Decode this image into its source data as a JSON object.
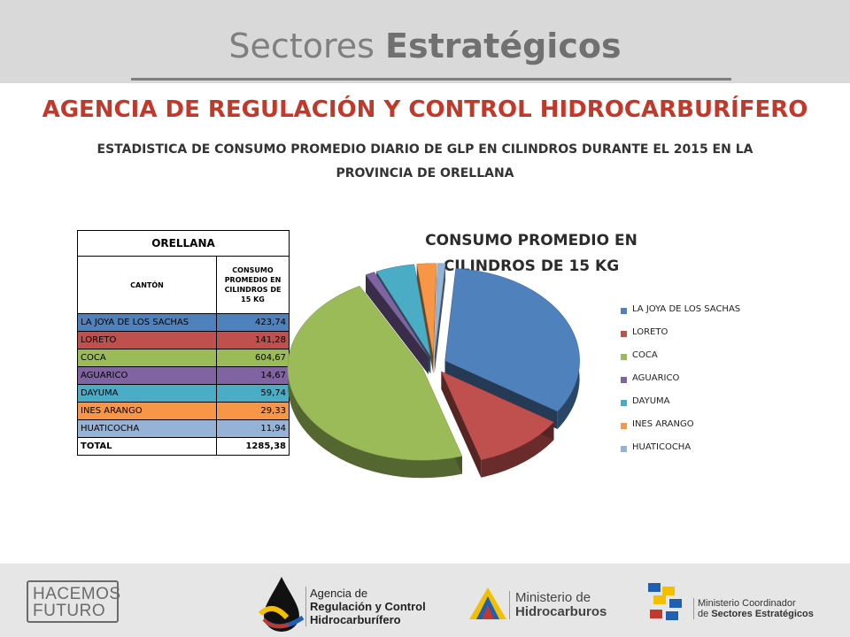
{
  "header": {
    "title_light": "Sectores",
    "title_bold": "Estratégicos"
  },
  "agency": "AGENCIA DE REGULACIÓN Y CONTROL HIDROCARBURÍFERO",
  "subtitle_line1": "ESTADISTICA DE CONSUMO PROMEDIO DIARIO DE GLP EN CILINDROS DURANTE EL 2015 EN LA",
  "subtitle_line2": "PROVINCIA DE ORELLANA",
  "table": {
    "region": "ORELLANA",
    "col1": "CANTÓN",
    "col2": "CONSUMO PROMEDIO EN CILINDROS DE 15 KG",
    "rows": [
      {
        "name": "LA JOYA DE LOS SACHAS",
        "value": "423,74",
        "color": "#4f81bd"
      },
      {
        "name": "LORETO",
        "value": "141,28",
        "color": "#c0504d"
      },
      {
        "name": "COCA",
        "value": "604,67",
        "color": "#9bbb59"
      },
      {
        "name": "AGUARICO",
        "value": "14,67",
        "color": "#8064a2"
      },
      {
        "name": "DAYUMA",
        "value": "59,74",
        "color": "#4bacc6"
      },
      {
        "name": "INES ARANGO",
        "value": "29,33",
        "color": "#f79646"
      },
      {
        "name": "HUATICOCHA",
        "value": "11,94",
        "color": "#95b3d7"
      }
    ],
    "total_label": "TOTAL",
    "total_value": "1285,38"
  },
  "chart_data": {
    "type": "pie",
    "title": "CONSUMO PROMEDIO EN CILINDROS DE 15 KG",
    "categories": [
      "LA JOYA DE LOS SACHAS",
      "LORETO",
      "COCA",
      "AGUARICO",
      "DAYUMA",
      "INES ARANGO",
      "HUATICOCHA"
    ],
    "values": [
      423.74,
      141.28,
      604.67,
      14.67,
      59.74,
      29.33,
      11.94
    ],
    "colors": [
      "#4f81bd",
      "#c0504d",
      "#9bbb59",
      "#8064a2",
      "#4bacc6",
      "#f79646",
      "#95b3d7"
    ],
    "style": "3d-exploded",
    "legend_position": "right"
  },
  "footer": {
    "hf_line1": "HACEMOS",
    "hf_line2": "FUTURO",
    "arch_line1": "Agencia de",
    "arch_line2": "Regulación y Control",
    "arch_line3": "Hidrocarburífero",
    "mh_line1": "Ministerio de",
    "mh_line2": "Hidrocarburos",
    "mc_line1": "Ministerio Coordinador",
    "mc_line2_prefix": "de",
    "mc_line2": "Sectores Estratégicos"
  }
}
